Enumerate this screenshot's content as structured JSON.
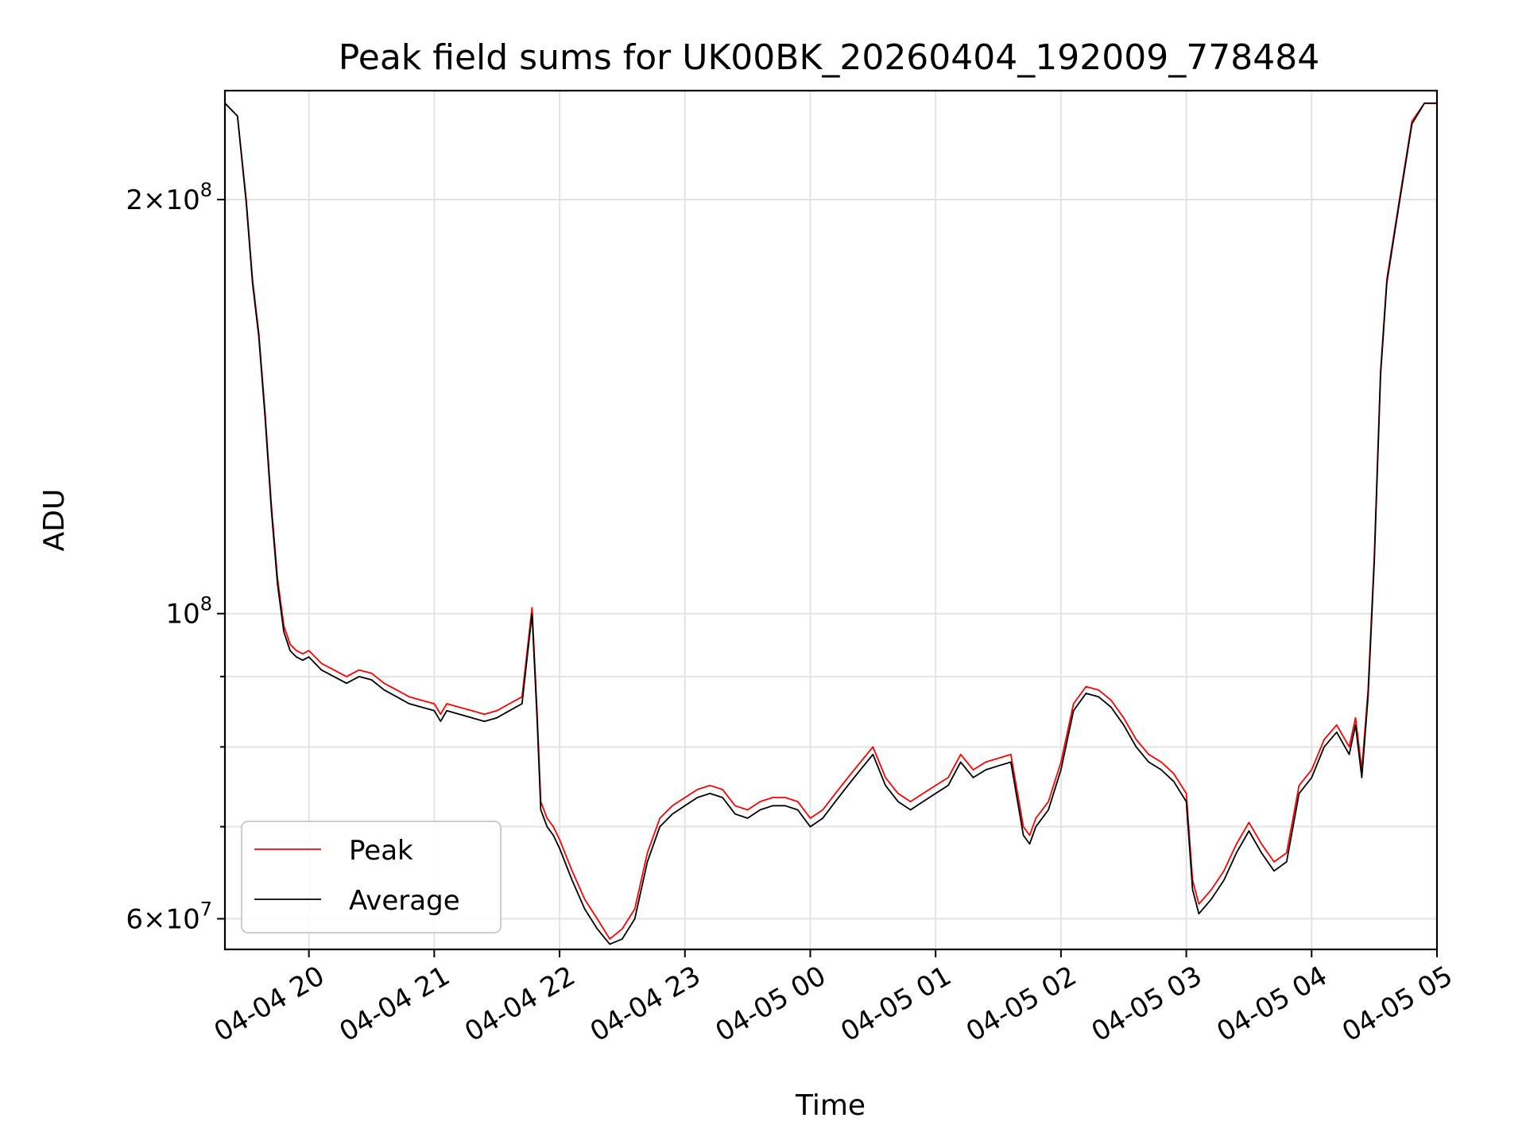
{
  "chart_data": {
    "type": "line",
    "title": "Peak field sums for UK00BK_20260404_192009_778484",
    "xlabel": "Time",
    "ylabel": "ADU",
    "yscale": "log",
    "ylim": [
      57000000,
      240000000
    ],
    "xlim_hours": [
      19.33,
      29.0
    ],
    "grid": true,
    "legend_position": "lower-left",
    "x_ticks": [
      {
        "hour": 20,
        "label": "04-04 20"
      },
      {
        "hour": 21,
        "label": "04-04 21"
      },
      {
        "hour": 22,
        "label": "04-04 22"
      },
      {
        "hour": 23,
        "label": "04-04 23"
      },
      {
        "hour": 24,
        "label": "04-05 00"
      },
      {
        "hour": 25,
        "label": "04-05 01"
      },
      {
        "hour": 26,
        "label": "04-05 02"
      },
      {
        "hour": 27,
        "label": "04-05 03"
      },
      {
        "hour": 28,
        "label": "04-05 04"
      },
      {
        "hour": 29,
        "label": "04-05 05"
      }
    ],
    "y_ticks": [
      {
        "value": 60000000,
        "mantissa": "6",
        "exponent": "7",
        "labeled": true
      },
      {
        "value": 70000000,
        "labeled": false
      },
      {
        "value": 80000000,
        "labeled": false
      },
      {
        "value": 90000000,
        "labeled": false
      },
      {
        "value": 100000000,
        "base": "10",
        "exponent": "8",
        "labeled": true
      },
      {
        "value": 200000000,
        "mantissa": "2",
        "exponent": "8",
        "labeled": true
      }
    ],
    "series": [
      {
        "name": "Peak",
        "color": "#ff0000",
        "x_hours": [
          19.33,
          19.43,
          19.5,
          19.55,
          19.6,
          19.65,
          19.7,
          19.75,
          19.8,
          19.85,
          19.9,
          19.95,
          20.0,
          20.1,
          20.2,
          20.3,
          20.4,
          20.5,
          20.6,
          20.7,
          20.8,
          20.9,
          21.0,
          21.05,
          21.1,
          21.2,
          21.3,
          21.4,
          21.5,
          21.6,
          21.7,
          21.78,
          21.82,
          21.85,
          21.9,
          21.95,
          22.0,
          22.1,
          22.2,
          22.3,
          22.4,
          22.5,
          22.6,
          22.7,
          22.8,
          22.9,
          23.0,
          23.1,
          23.2,
          23.3,
          23.4,
          23.5,
          23.6,
          23.7,
          23.8,
          23.9,
          24.0,
          24.1,
          24.2,
          24.3,
          24.4,
          24.5,
          24.6,
          24.7,
          24.8,
          24.9,
          25.0,
          25.1,
          25.2,
          25.3,
          25.4,
          25.5,
          25.6,
          25.7,
          25.75,
          25.8,
          25.9,
          26.0,
          26.1,
          26.2,
          26.3,
          26.4,
          26.5,
          26.6,
          26.7,
          26.8,
          26.9,
          27.0,
          27.05,
          27.1,
          27.2,
          27.3,
          27.4,
          27.5,
          27.6,
          27.7,
          27.8,
          27.9,
          28.0,
          28.1,
          28.2,
          28.3,
          28.35,
          28.4,
          28.45,
          28.5,
          28.55,
          28.6,
          28.7,
          28.8,
          28.9,
          29.0
        ],
        "values": [
          235000000,
          230000000,
          200000000,
          175000000,
          160000000,
          140000000,
          120000000,
          106000000,
          98000000,
          95000000,
          94000000,
          93500000,
          94000000,
          92000000,
          91000000,
          90000000,
          91000000,
          90500000,
          89000000,
          88000000,
          87000000,
          86500000,
          86000000,
          84500000,
          86000000,
          85500000,
          85000000,
          84500000,
          85000000,
          86000000,
          87000000,
          101000000,
          85000000,
          73000000,
          71000000,
          70000000,
          68500000,
          65000000,
          62000000,
          60000000,
          58000000,
          59000000,
          61000000,
          67000000,
          71000000,
          72500000,
          73500000,
          74500000,
          75000000,
          74500000,
          72500000,
          72000000,
          73000000,
          73500000,
          73500000,
          73000000,
          71000000,
          72000000,
          74000000,
          76000000,
          78000000,
          80000000,
          76000000,
          74000000,
          73000000,
          74000000,
          75000000,
          76000000,
          79000000,
          77000000,
          78000000,
          78500000,
          79000000,
          70000000,
          69000000,
          71000000,
          73000000,
          78000000,
          86000000,
          88500000,
          88000000,
          86500000,
          84000000,
          81000000,
          79000000,
          78000000,
          76500000,
          74000000,
          64000000,
          61500000,
          63000000,
          65000000,
          68000000,
          70500000,
          68000000,
          66000000,
          67000000,
          75000000,
          77000000,
          81000000,
          83000000,
          80000000,
          84000000,
          77000000,
          88000000,
          110000000,
          150000000,
          175000000,
          200000000,
          228000000,
          235000000,
          235000000
        ]
      },
      {
        "name": "Average",
        "color": "#000000",
        "x_hours": [
          19.33,
          19.43,
          19.5,
          19.55,
          19.6,
          19.65,
          19.7,
          19.75,
          19.8,
          19.85,
          19.9,
          19.95,
          20.0,
          20.1,
          20.2,
          20.3,
          20.4,
          20.5,
          20.6,
          20.7,
          20.8,
          20.9,
          21.0,
          21.05,
          21.1,
          21.2,
          21.3,
          21.4,
          21.5,
          21.6,
          21.7,
          21.78,
          21.82,
          21.85,
          21.9,
          21.95,
          22.0,
          22.1,
          22.2,
          22.3,
          22.4,
          22.5,
          22.6,
          22.7,
          22.8,
          22.9,
          23.0,
          23.1,
          23.2,
          23.3,
          23.4,
          23.5,
          23.6,
          23.7,
          23.8,
          23.9,
          24.0,
          24.1,
          24.2,
          24.3,
          24.4,
          24.5,
          24.6,
          24.7,
          24.8,
          24.9,
          25.0,
          25.1,
          25.2,
          25.3,
          25.4,
          25.5,
          25.6,
          25.7,
          25.75,
          25.8,
          25.9,
          26.0,
          26.1,
          26.2,
          26.3,
          26.4,
          26.5,
          26.6,
          26.7,
          26.8,
          26.9,
          27.0,
          27.05,
          27.1,
          27.2,
          27.3,
          27.4,
          27.5,
          27.6,
          27.7,
          27.8,
          27.9,
          28.0,
          28.1,
          28.2,
          28.3,
          28.35,
          28.4,
          28.45,
          28.5,
          28.55,
          28.6,
          28.7,
          28.8,
          28.9,
          29.0
        ],
        "values": [
          235000000,
          230000000,
          199000000,
          174000000,
          159000000,
          139000000,
          119000000,
          105000000,
          97000000,
          94000000,
          93000000,
          92500000,
          93000000,
          91000000,
          90000000,
          89000000,
          90000000,
          89500000,
          88000000,
          87000000,
          86000000,
          85500000,
          85000000,
          83500000,
          85000000,
          84500000,
          84000000,
          83500000,
          84000000,
          85000000,
          86000000,
          100000000,
          84000000,
          72000000,
          70000000,
          69000000,
          67500000,
          64000000,
          61000000,
          59000000,
          57500000,
          58000000,
          60000000,
          66000000,
          70000000,
          71500000,
          72500000,
          73500000,
          74000000,
          73500000,
          71500000,
          71000000,
          72000000,
          72500000,
          72500000,
          72000000,
          70000000,
          71000000,
          73000000,
          75000000,
          77000000,
          79000000,
          75000000,
          73000000,
          72000000,
          73000000,
          74000000,
          75000000,
          78000000,
          76000000,
          77000000,
          77500000,
          78000000,
          69000000,
          68000000,
          70000000,
          72000000,
          77000000,
          85000000,
          87500000,
          87000000,
          85500000,
          83000000,
          80000000,
          78000000,
          77000000,
          75500000,
          73000000,
          63000000,
          60500000,
          62000000,
          64000000,
          67000000,
          69500000,
          67000000,
          65000000,
          66000000,
          74000000,
          76000000,
          80000000,
          82000000,
          79000000,
          83000000,
          76000000,
          87000000,
          109000000,
          149000000,
          174000000,
          199000000,
          227000000,
          235000000,
          235000000
        ]
      }
    ]
  }
}
